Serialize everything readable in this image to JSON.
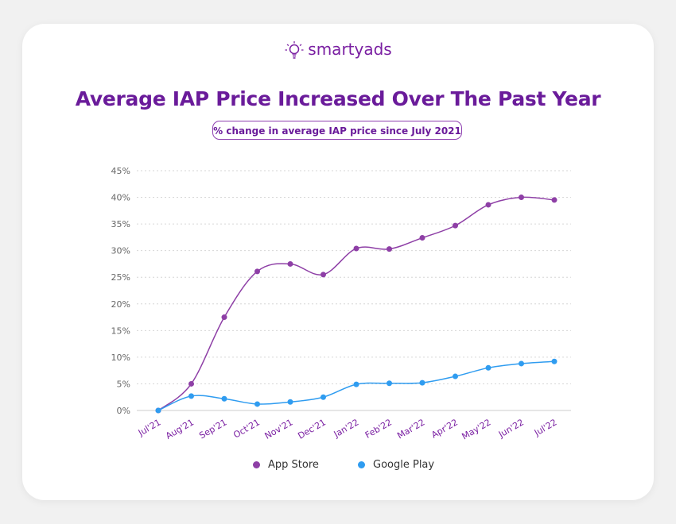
{
  "brand": {
    "name": "smartyads",
    "color": "#7a1fa2"
  },
  "chart_data": {
    "type": "line",
    "title": "Average IAP Price Increased Over The Past Year",
    "subtitle": "% change in average IAP price since July 2021",
    "categories": [
      "Jul'21",
      "Aug'21",
      "Sep'21",
      "Oct'21",
      "Nov'21",
      "Dec'21",
      "Jan'22",
      "Feb'22",
      "Mar'22",
      "Apr'22",
      "May'22",
      "Jun'22",
      "Jul'22"
    ],
    "yticks": [
      "0%",
      "5%",
      "10%",
      "15%",
      "20%",
      "25%",
      "30%",
      "35%",
      "40%",
      "45%"
    ],
    "ylim": [
      0,
      45
    ],
    "grid": true,
    "legend_placement": "bottom",
    "series": [
      {
        "name": "App Store",
        "color": "#8e3fa6",
        "values": [
          0,
          5.0,
          17.5,
          26.1,
          27.5,
          25.5,
          30.4,
          30.3,
          32.4,
          34.7,
          38.6,
          40.0,
          39.5
        ]
      },
      {
        "name": "Google Play",
        "color": "#2f9cf0",
        "values": [
          0,
          2.7,
          2.2,
          1.2,
          1.6,
          2.5,
          4.9,
          5.1,
          5.2,
          6.4,
          8.0,
          8.8,
          9.2
        ]
      }
    ]
  }
}
